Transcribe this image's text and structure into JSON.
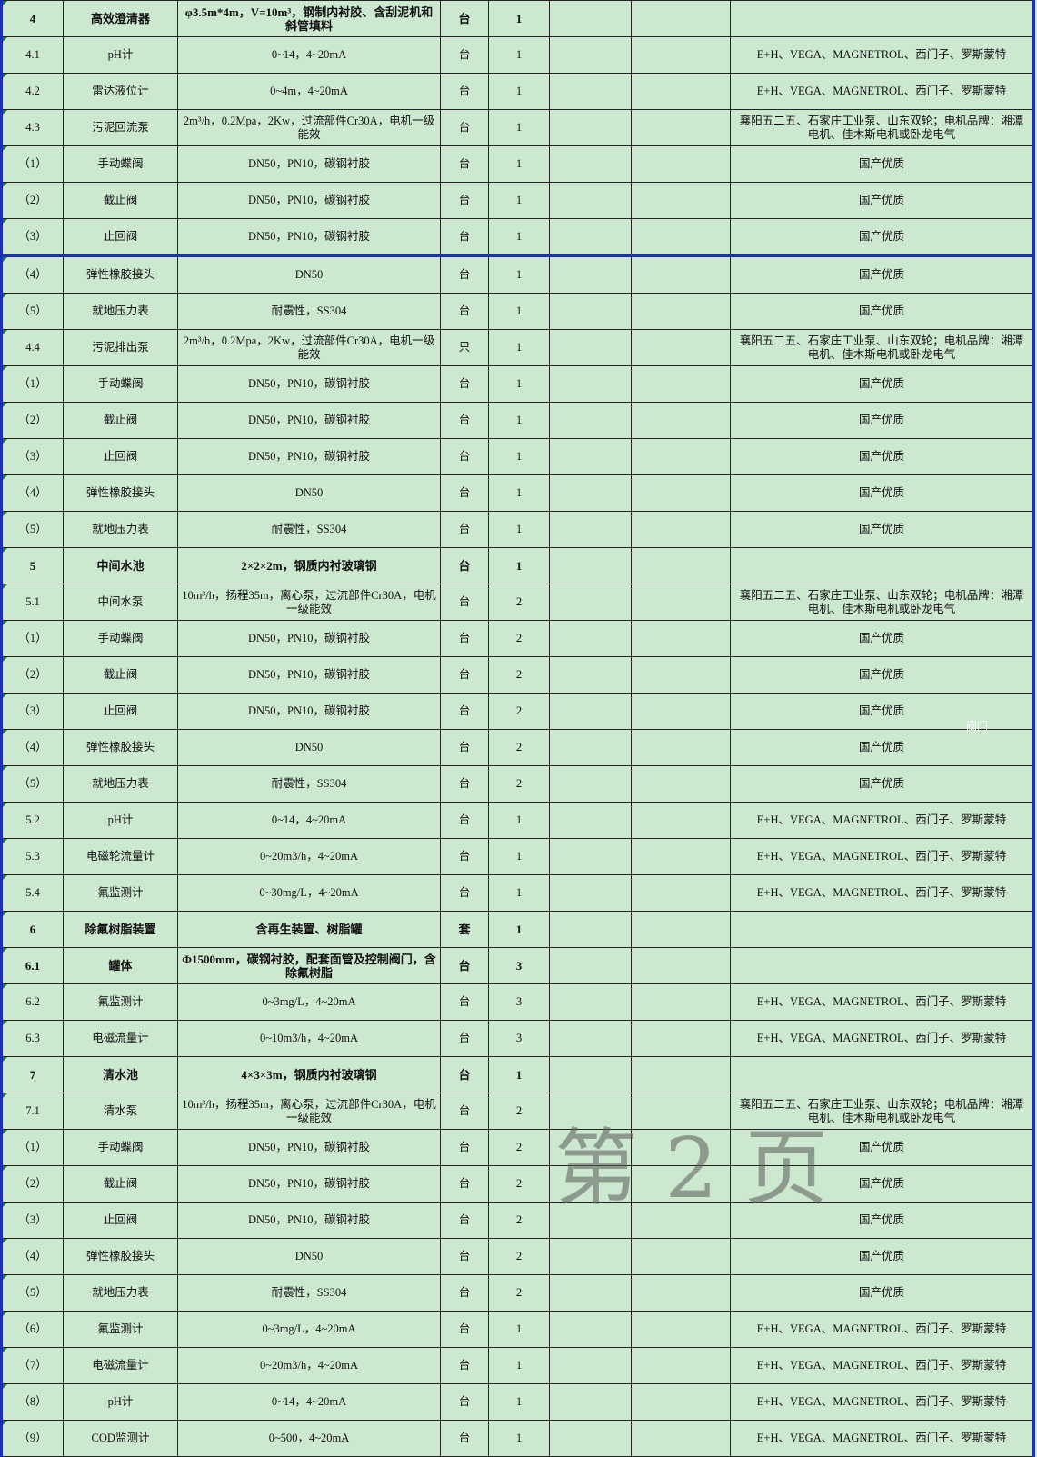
{
  "rows": [
    {
      "no": "4",
      "name": "高效澄清器",
      "spec": "φ3.5m*4m，V=10m³，钢制内衬胶、含刮泥机和斜管填料",
      "unit": "台",
      "qty": "1",
      "brand": "",
      "main": true
    },
    {
      "no": "4.1",
      "name": "pH计",
      "spec": "0~14，4~20mA",
      "unit": "台",
      "qty": "1",
      "brand": "E+H、VEGA、MAGNETROL、西门子、罗斯蒙特"
    },
    {
      "no": "4.2",
      "name": "雷达液位计",
      "spec": "0~4m，4~20mA",
      "unit": "台",
      "qty": "1",
      "brand": "E+H、VEGA、MAGNETROL、西门子、罗斯蒙特"
    },
    {
      "no": "4.3",
      "name": "污泥回流泵",
      "spec": "2m³/h，0.2Mpa，2Kw，过流部件Cr30A，电机一级能效",
      "unit": "台",
      "qty": "1",
      "brand": "襄阳五二五、石家庄工业泵、山东双轮；电机品牌：湘潭电机、佳木斯电机或卧龙电气"
    },
    {
      "no": "（1）",
      "name": "手动蝶阀",
      "spec": "DN50，PN10，碳钢衬胶",
      "unit": "台",
      "qty": "1",
      "brand": "国产优质"
    },
    {
      "no": "（2）",
      "name": "截止阀",
      "spec": "DN50，PN10，碳钢衬胶",
      "unit": "台",
      "qty": "1",
      "brand": "国产优质"
    },
    {
      "no": "（3）",
      "name": "止回阀",
      "spec": "DN50，PN10，碳钢衬胶",
      "unit": "台",
      "qty": "1",
      "brand": "国产优质",
      "sep": true
    },
    {
      "no": "（4）",
      "name": "弹性橡胶接头",
      "spec": "DN50",
      "unit": "台",
      "qty": "1",
      "brand": "国产优质"
    },
    {
      "no": "（5）",
      "name": "就地压力表",
      "spec": "耐震性，SS304",
      "unit": "台",
      "qty": "1",
      "brand": "国产优质"
    },
    {
      "no": "4.4",
      "name": "污泥排出泵",
      "spec": "2m³/h，0.2Mpa，2Kw，过流部件Cr30A，电机一级能效",
      "unit": "只",
      "qty": "1",
      "brand": "襄阳五二五、石家庄工业泵、山东双轮；电机品牌：湘潭电机、佳木斯电机或卧龙电气"
    },
    {
      "no": "（1）",
      "name": "手动蝶阀",
      "spec": "DN50，PN10，碳钢衬胶",
      "unit": "台",
      "qty": "1",
      "brand": "国产优质"
    },
    {
      "no": "（2）",
      "name": "截止阀",
      "spec": "DN50，PN10，碳钢衬胶",
      "unit": "台",
      "qty": "1",
      "brand": "国产优质"
    },
    {
      "no": "（3）",
      "name": "止回阀",
      "spec": "DN50，PN10，碳钢衬胶",
      "unit": "台",
      "qty": "1",
      "brand": "国产优质"
    },
    {
      "no": "（4）",
      "name": "弹性橡胶接头",
      "spec": "DN50",
      "unit": "台",
      "qty": "1",
      "brand": "国产优质"
    },
    {
      "no": "（5）",
      "name": "就地压力表",
      "spec": "耐震性，SS304",
      "unit": "台",
      "qty": "1",
      "brand": "国产优质"
    },
    {
      "no": "5",
      "name": "中间水池",
      "spec": "2×2×2m，钢质内衬玻璃钢",
      "unit": "台",
      "qty": "1",
      "brand": "",
      "main": true
    },
    {
      "no": "5.1",
      "name": "中间水泵",
      "spec": "10m³/h，扬程35m，离心泵，过流部件Cr30A，电机一级能效",
      "unit": "台",
      "qty": "2",
      "brand": "襄阳五二五、石家庄工业泵、山东双轮；电机品牌：湘潭电机、佳木斯电机或卧龙电气"
    },
    {
      "no": "（1）",
      "name": "手动蝶阀",
      "spec": "DN50，PN10，碳钢衬胶",
      "unit": "台",
      "qty": "2",
      "brand": "国产优质"
    },
    {
      "no": "（2）",
      "name": "截止阀",
      "spec": "DN50，PN10，碳钢衬胶",
      "unit": "台",
      "qty": "2",
      "brand": "国产优质"
    },
    {
      "no": "（3）",
      "name": "止回阀",
      "spec": "DN50，PN10，碳钢衬胶",
      "unit": "台",
      "qty": "2",
      "brand": "国产优质"
    },
    {
      "no": "（4）",
      "name": "弹性橡胶接头",
      "spec": "DN50",
      "unit": "台",
      "qty": "2",
      "brand": "国产优质"
    },
    {
      "no": "（5）",
      "name": "就地压力表",
      "spec": "耐震性，SS304",
      "unit": "台",
      "qty": "2",
      "brand": "国产优质"
    },
    {
      "no": "5.2",
      "name": "pH计",
      "spec": "0~14，4~20mA",
      "unit": "台",
      "qty": "1",
      "brand": "E+H、VEGA、MAGNETROL、西门子、罗斯蒙特"
    },
    {
      "no": "5.3",
      "name": "电磁轮流量计",
      "spec": "0~20m3/h，4~20mA",
      "unit": "台",
      "qty": "1",
      "brand": "E+H、VEGA、MAGNETROL、西门子、罗斯蒙特"
    },
    {
      "no": "5.4",
      "name": "氟监测计",
      "spec": "0~30mg/L，4~20mA",
      "unit": "台",
      "qty": "1",
      "brand": "E+H、VEGA、MAGNETROL、西门子、罗斯蒙特"
    },
    {
      "no": "6",
      "name": "除氟树脂装置",
      "spec": "含再生装置、树脂罐",
      "unit": "套",
      "qty": "1",
      "brand": "",
      "main": true
    },
    {
      "no": "6.1",
      "name": "罐体",
      "spec": "Φ1500mm，碳钢衬胶，配套面管及控制阀门，含除氟树脂",
      "unit": "台",
      "qty": "3",
      "brand": "",
      "main": true
    },
    {
      "no": "6.2",
      "name": "氟监测计",
      "spec": "0~3mg/L，4~20mA",
      "unit": "台",
      "qty": "3",
      "brand": "E+H、VEGA、MAGNETROL、西门子、罗斯蒙特"
    },
    {
      "no": "6.3",
      "name": "电磁流量计",
      "spec": "0~10m3/h，4~20mA",
      "unit": "台",
      "qty": "3",
      "brand": "E+H、VEGA、MAGNETROL、西门子、罗斯蒙特"
    },
    {
      "no": "7",
      "name": "清水池",
      "spec": "4×3×3m，钢质内衬玻璃钢",
      "unit": "台",
      "qty": "1",
      "brand": "",
      "main": true
    },
    {
      "no": "7.1",
      "name": "清水泵",
      "spec": "10m³/h，扬程35m，离心泵，过流部件Cr30A，电机一级能效",
      "unit": "台",
      "qty": "2",
      "brand": "襄阳五二五、石家庄工业泵、山东双轮；电机品牌：湘潭电机、佳木斯电机或卧龙电气"
    },
    {
      "no": "（1）",
      "name": "手动蝶阀",
      "spec": "DN50，PN10，碳钢衬胶",
      "unit": "台",
      "qty": "2",
      "brand": "国产优质"
    },
    {
      "no": "（2）",
      "name": "截止阀",
      "spec": "DN50，PN10，碳钢衬胶",
      "unit": "台",
      "qty": "2",
      "brand": "国产优质"
    },
    {
      "no": "（3）",
      "name": "止回阀",
      "spec": "DN50，PN10，碳钢衬胶",
      "unit": "台",
      "qty": "2",
      "brand": "国产优质"
    },
    {
      "no": "（4）",
      "name": "弹性橡胶接头",
      "spec": "DN50",
      "unit": "台",
      "qty": "2",
      "brand": "国产优质"
    },
    {
      "no": "（5）",
      "name": "就地压力表",
      "spec": "耐震性，SS304",
      "unit": "台",
      "qty": "2",
      "brand": "国产优质"
    },
    {
      "no": "（6）",
      "name": "氟监测计",
      "spec": "0~3mg/L，4~20mA",
      "unit": "台",
      "qty": "1",
      "brand": "E+H、VEGA、MAGNETROL、西门子、罗斯蒙特"
    },
    {
      "no": "（7）",
      "name": "电磁流量计",
      "spec": "0~20m3/h，4~20mA",
      "unit": "台",
      "qty": "1",
      "brand": "E+H、VEGA、MAGNETROL、西门子、罗斯蒙特"
    },
    {
      "no": "（8）",
      "name": "pH计",
      "spec": "0~14，4~20mA",
      "unit": "台",
      "qty": "1",
      "brand": "E+H、VEGA、MAGNETROL、西门子、罗斯蒙特"
    },
    {
      "no": "（9）",
      "name": "COD监测计",
      "spec": "0~500，4~20mA",
      "unit": "台",
      "qty": "1",
      "brand": "E+H、VEGA、MAGNETROL、西门子、罗斯蒙特"
    }
  ],
  "watermark": "第 2 页",
  "floating_note": "阀门",
  "colors": {
    "cell_bg": "#cce8cf",
    "border_accent": "#1a2fb8"
  }
}
